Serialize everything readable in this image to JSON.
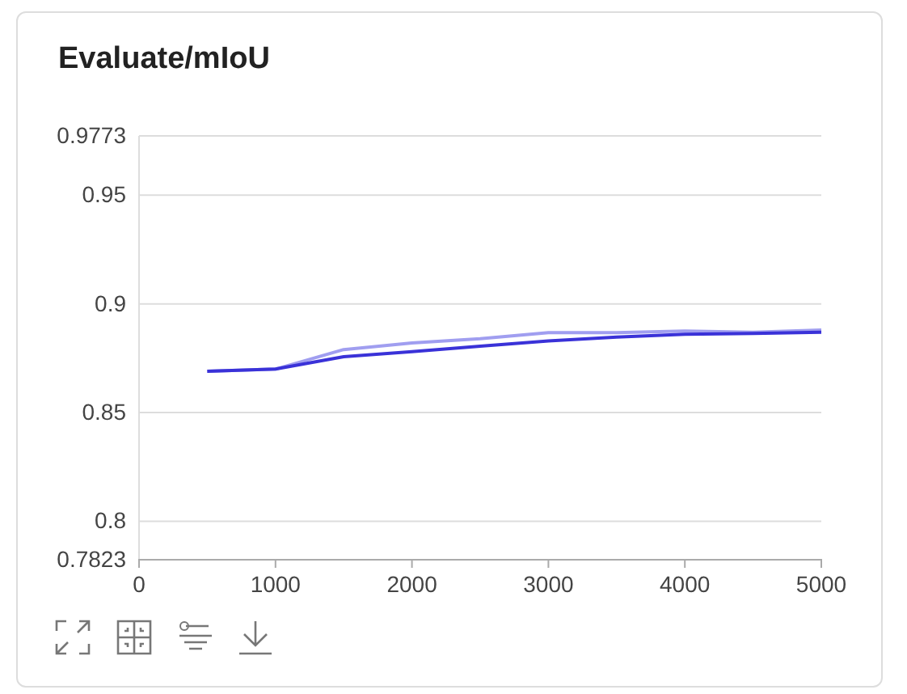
{
  "chart_data": {
    "type": "line",
    "title": "Evaluate/mIoU",
    "x": [
      500,
      1000,
      1500,
      2000,
      2500,
      3000,
      3500,
      4000,
      4500,
      5000
    ],
    "series": [
      {
        "color": "#a09ef0",
        "values": [
          0.869,
          0.87,
          0.879,
          0.882,
          0.884,
          0.8868,
          0.8868,
          0.8875,
          0.887,
          0.888
        ]
      },
      {
        "color": "#3a32d8",
        "values": [
          0.869,
          0.87,
          0.8757,
          0.878,
          0.8805,
          0.883,
          0.8847,
          0.886,
          0.8864,
          0.887
        ]
      }
    ],
    "xlim": [
      0,
      5000
    ],
    "xticks": [
      0,
      1000,
      2000,
      3000,
      4000,
      5000
    ],
    "ylim": [
      0.7823,
      0.9773
    ],
    "yticks": [
      0.7823,
      0.8,
      0.85,
      0.9,
      0.95,
      0.9773
    ],
    "grid": "y",
    "marker": "none",
    "line_style": "solid"
  }
}
